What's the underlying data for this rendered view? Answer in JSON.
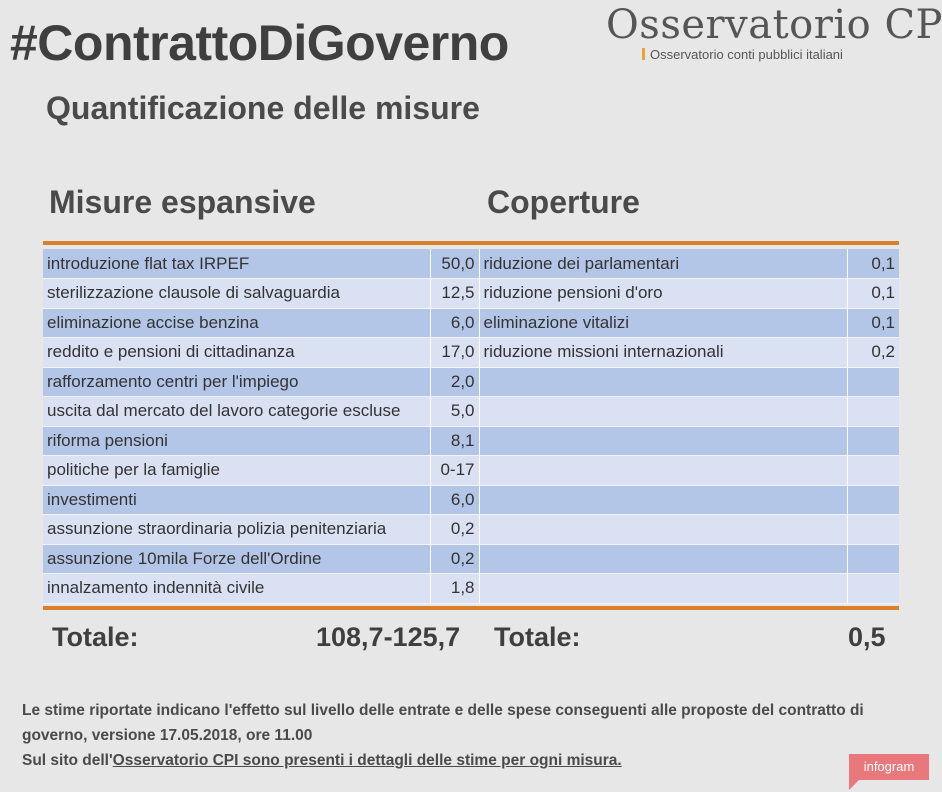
{
  "header": {
    "hashtag": "#ContrattoDiGoverno",
    "logo_title": "Osservatorio CPI",
    "logo_subtitle": "Osservatorio conti pubblici italiani"
  },
  "subtitle": "Quantificazione delle misure",
  "columns": {
    "left": "Misure espansive",
    "right": "Coperture"
  },
  "rows": [
    {
      "misura": "introduzione flat tax IRPEF",
      "valore": "50,0",
      "copertura": "riduzione dei parlamentari",
      "cvalore": "0,1"
    },
    {
      "misura": "sterilizzazione clausole di salvaguardia",
      "valore": "12,5",
      "copertura": "riduzione pensioni d'oro",
      "cvalore": "0,1"
    },
    {
      "misura": "eliminazione accise benzina",
      "valore": "6,0",
      "copertura": "eliminazione vitalizi",
      "cvalore": "0,1"
    },
    {
      "misura": "reddito e pensioni di cittadinanza",
      "valore": "17,0",
      "copertura": "riduzione missioni internazionali",
      "cvalore": "0,2"
    },
    {
      "misura": "rafforzamento centri per l'impiego",
      "valore": "2,0",
      "copertura": "",
      "cvalore": ""
    },
    {
      "misura": "uscita dal mercato del lavoro categorie escluse",
      "valore": "5,0",
      "copertura": "",
      "cvalore": ""
    },
    {
      "misura": "riforma pensioni",
      "valore": "8,1",
      "copertura": "",
      "cvalore": ""
    },
    {
      "misura": "politiche per la famiglie",
      "valore": "0-17",
      "copertura": "",
      "cvalore": ""
    },
    {
      "misura": "investimenti",
      "valore": "6,0",
      "copertura": "",
      "cvalore": ""
    },
    {
      "misura": "assunzione straordinaria polizia penitenziaria",
      "valore": "0,2",
      "copertura": "",
      "cvalore": ""
    },
    {
      "misura": "assunzione 10mila Forze dell'Ordine",
      "valore": "0,2",
      "copertura": "",
      "cvalore": ""
    },
    {
      "misura": "innalzamento indennità civile",
      "valore": "1,8",
      "copertura": "",
      "cvalore": ""
    }
  ],
  "totals": {
    "left_label": "Totale:",
    "left_value": "108,7-125,7",
    "right_label": "Totale:",
    "right_value": "0,5"
  },
  "notes": {
    "line1": "Le stime riportate indicano l'effetto sul livello delle entrate e delle spese conseguenti alle proposte del contratto di governo, versione 17.05.2018, ore 11.00",
    "line2_prefix": "Sul sito dell'",
    "line2_link": "Osservatorio CPI sono presenti i dettagli delle stime per ogni misura."
  },
  "badge": "infogram",
  "colors": {
    "accent_rule": "#d9812a",
    "row_dark": "#b4c6e7",
    "row_light": "#d9e1f3",
    "badge": "#e8787c"
  }
}
